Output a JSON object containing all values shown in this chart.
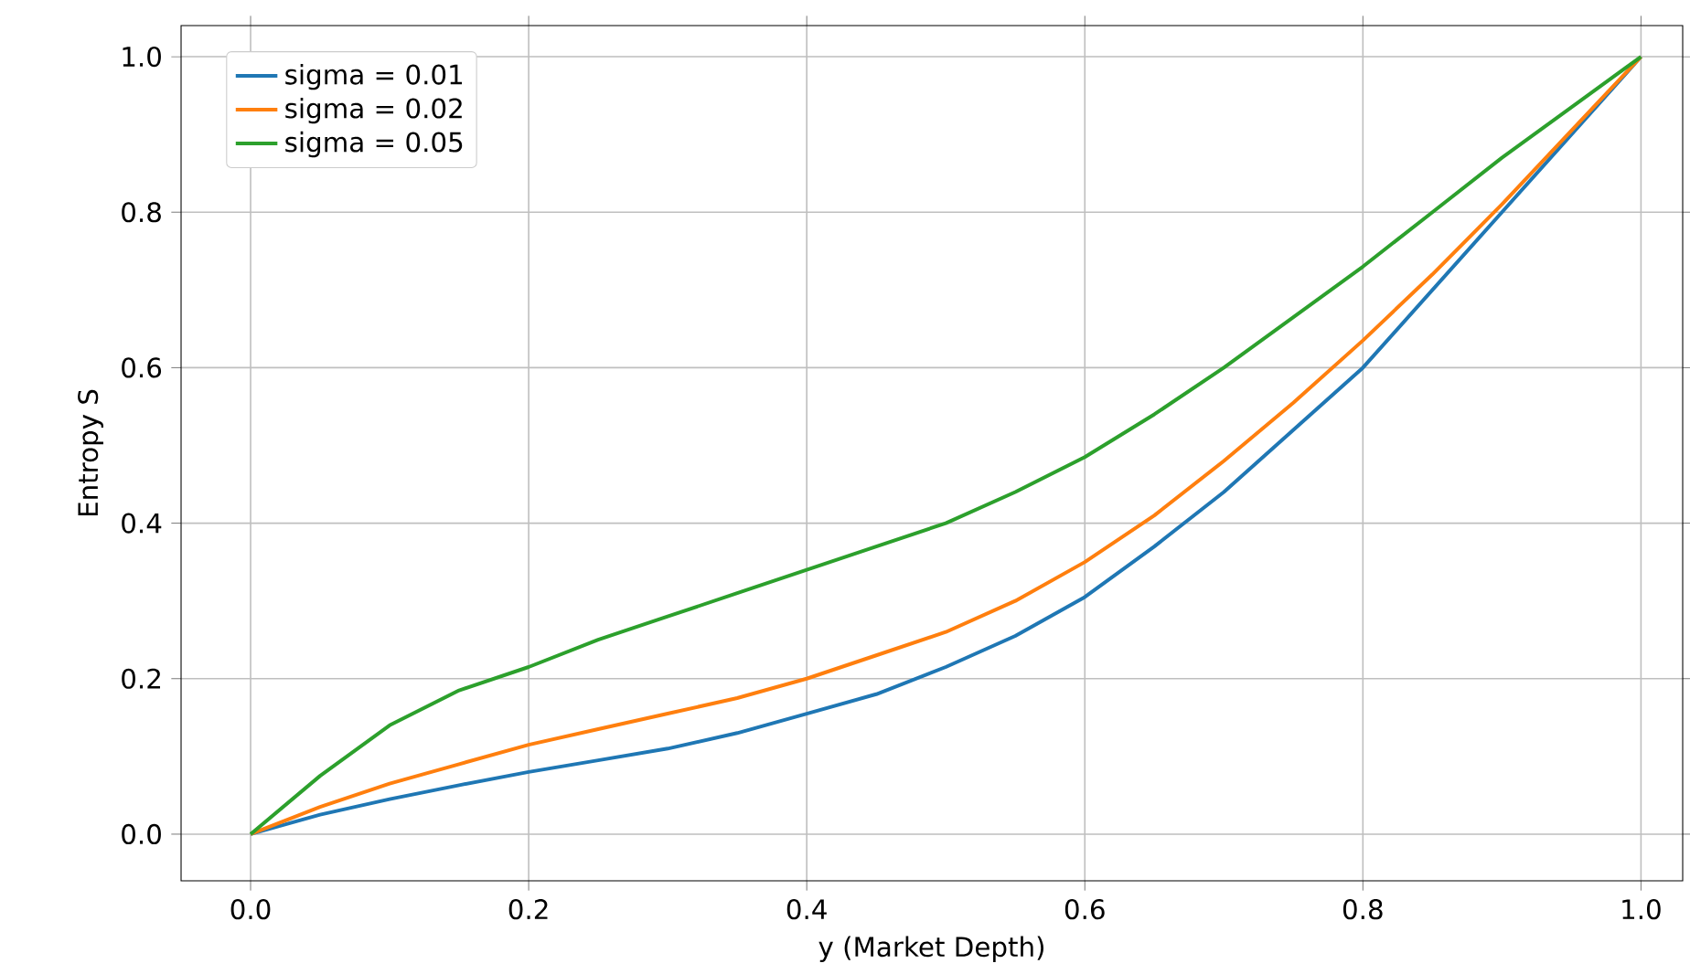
{
  "chart_data": {
    "type": "line",
    "xlabel": "y (Market Depth)",
    "ylabel": "Entropy S",
    "x": [
      0,
      0.05,
      0.1,
      0.15,
      0.2,
      0.25,
      0.3,
      0.35,
      0.4,
      0.45,
      0.5,
      0.55,
      0.6,
      0.65,
      0.7,
      0.75,
      0.8,
      0.85,
      0.9,
      0.95,
      1
    ],
    "series": [
      {
        "name": "sigma = 0.01",
        "color": "#1f77b4",
        "values": [
          0,
          0.025,
          0.045,
          0.063,
          0.08,
          0.095,
          0.11,
          0.13,
          0.155,
          0.18,
          0.215,
          0.255,
          0.305,
          0.37,
          0.44,
          0.52,
          0.6,
          0.7,
          0.8,
          0.9,
          1
        ]
      },
      {
        "name": "sigma = 0.02",
        "color": "#ff7f0e",
        "values": [
          0,
          0.035,
          0.065,
          0.09,
          0.115,
          0.135,
          0.155,
          0.175,
          0.2,
          0.23,
          0.26,
          0.3,
          0.35,
          0.41,
          0.48,
          0.555,
          0.635,
          0.72,
          0.81,
          0.905,
          1
        ]
      },
      {
        "name": "sigma = 0.05",
        "color": "#2ca02c",
        "values": [
          0,
          0.075,
          0.14,
          0.185,
          0.215,
          0.25,
          0.28,
          0.31,
          0.34,
          0.37,
          0.4,
          0.44,
          0.485,
          0.54,
          0.6,
          0.665,
          0.73,
          0.8,
          0.87,
          0.935,
          1
        ]
      }
    ],
    "xlim": [
      -0.05,
      1.03
    ],
    "ylim": [
      -0.06,
      1.04
    ],
    "xticks": [
      {
        "value": 0,
        "label": "0.0"
      },
      {
        "value": 0.2,
        "label": "0.2"
      },
      {
        "value": 0.4,
        "label": "0.4"
      },
      {
        "value": 0.6,
        "label": "0.6"
      },
      {
        "value": 0.8,
        "label": "0.8"
      },
      {
        "value": 1,
        "label": "1.0"
      }
    ],
    "yticks": [
      {
        "value": 0,
        "label": "0.0"
      },
      {
        "value": 0.2,
        "label": "0.2"
      },
      {
        "value": 0.4,
        "label": "0.4"
      },
      {
        "value": 0.6,
        "label": "0.6"
      },
      {
        "value": 0.8,
        "label": "0.8"
      },
      {
        "value": 1,
        "label": "1.0"
      }
    ],
    "grid": true,
    "legend": "top left",
    "marker": "none",
    "line_style": "solid"
  }
}
